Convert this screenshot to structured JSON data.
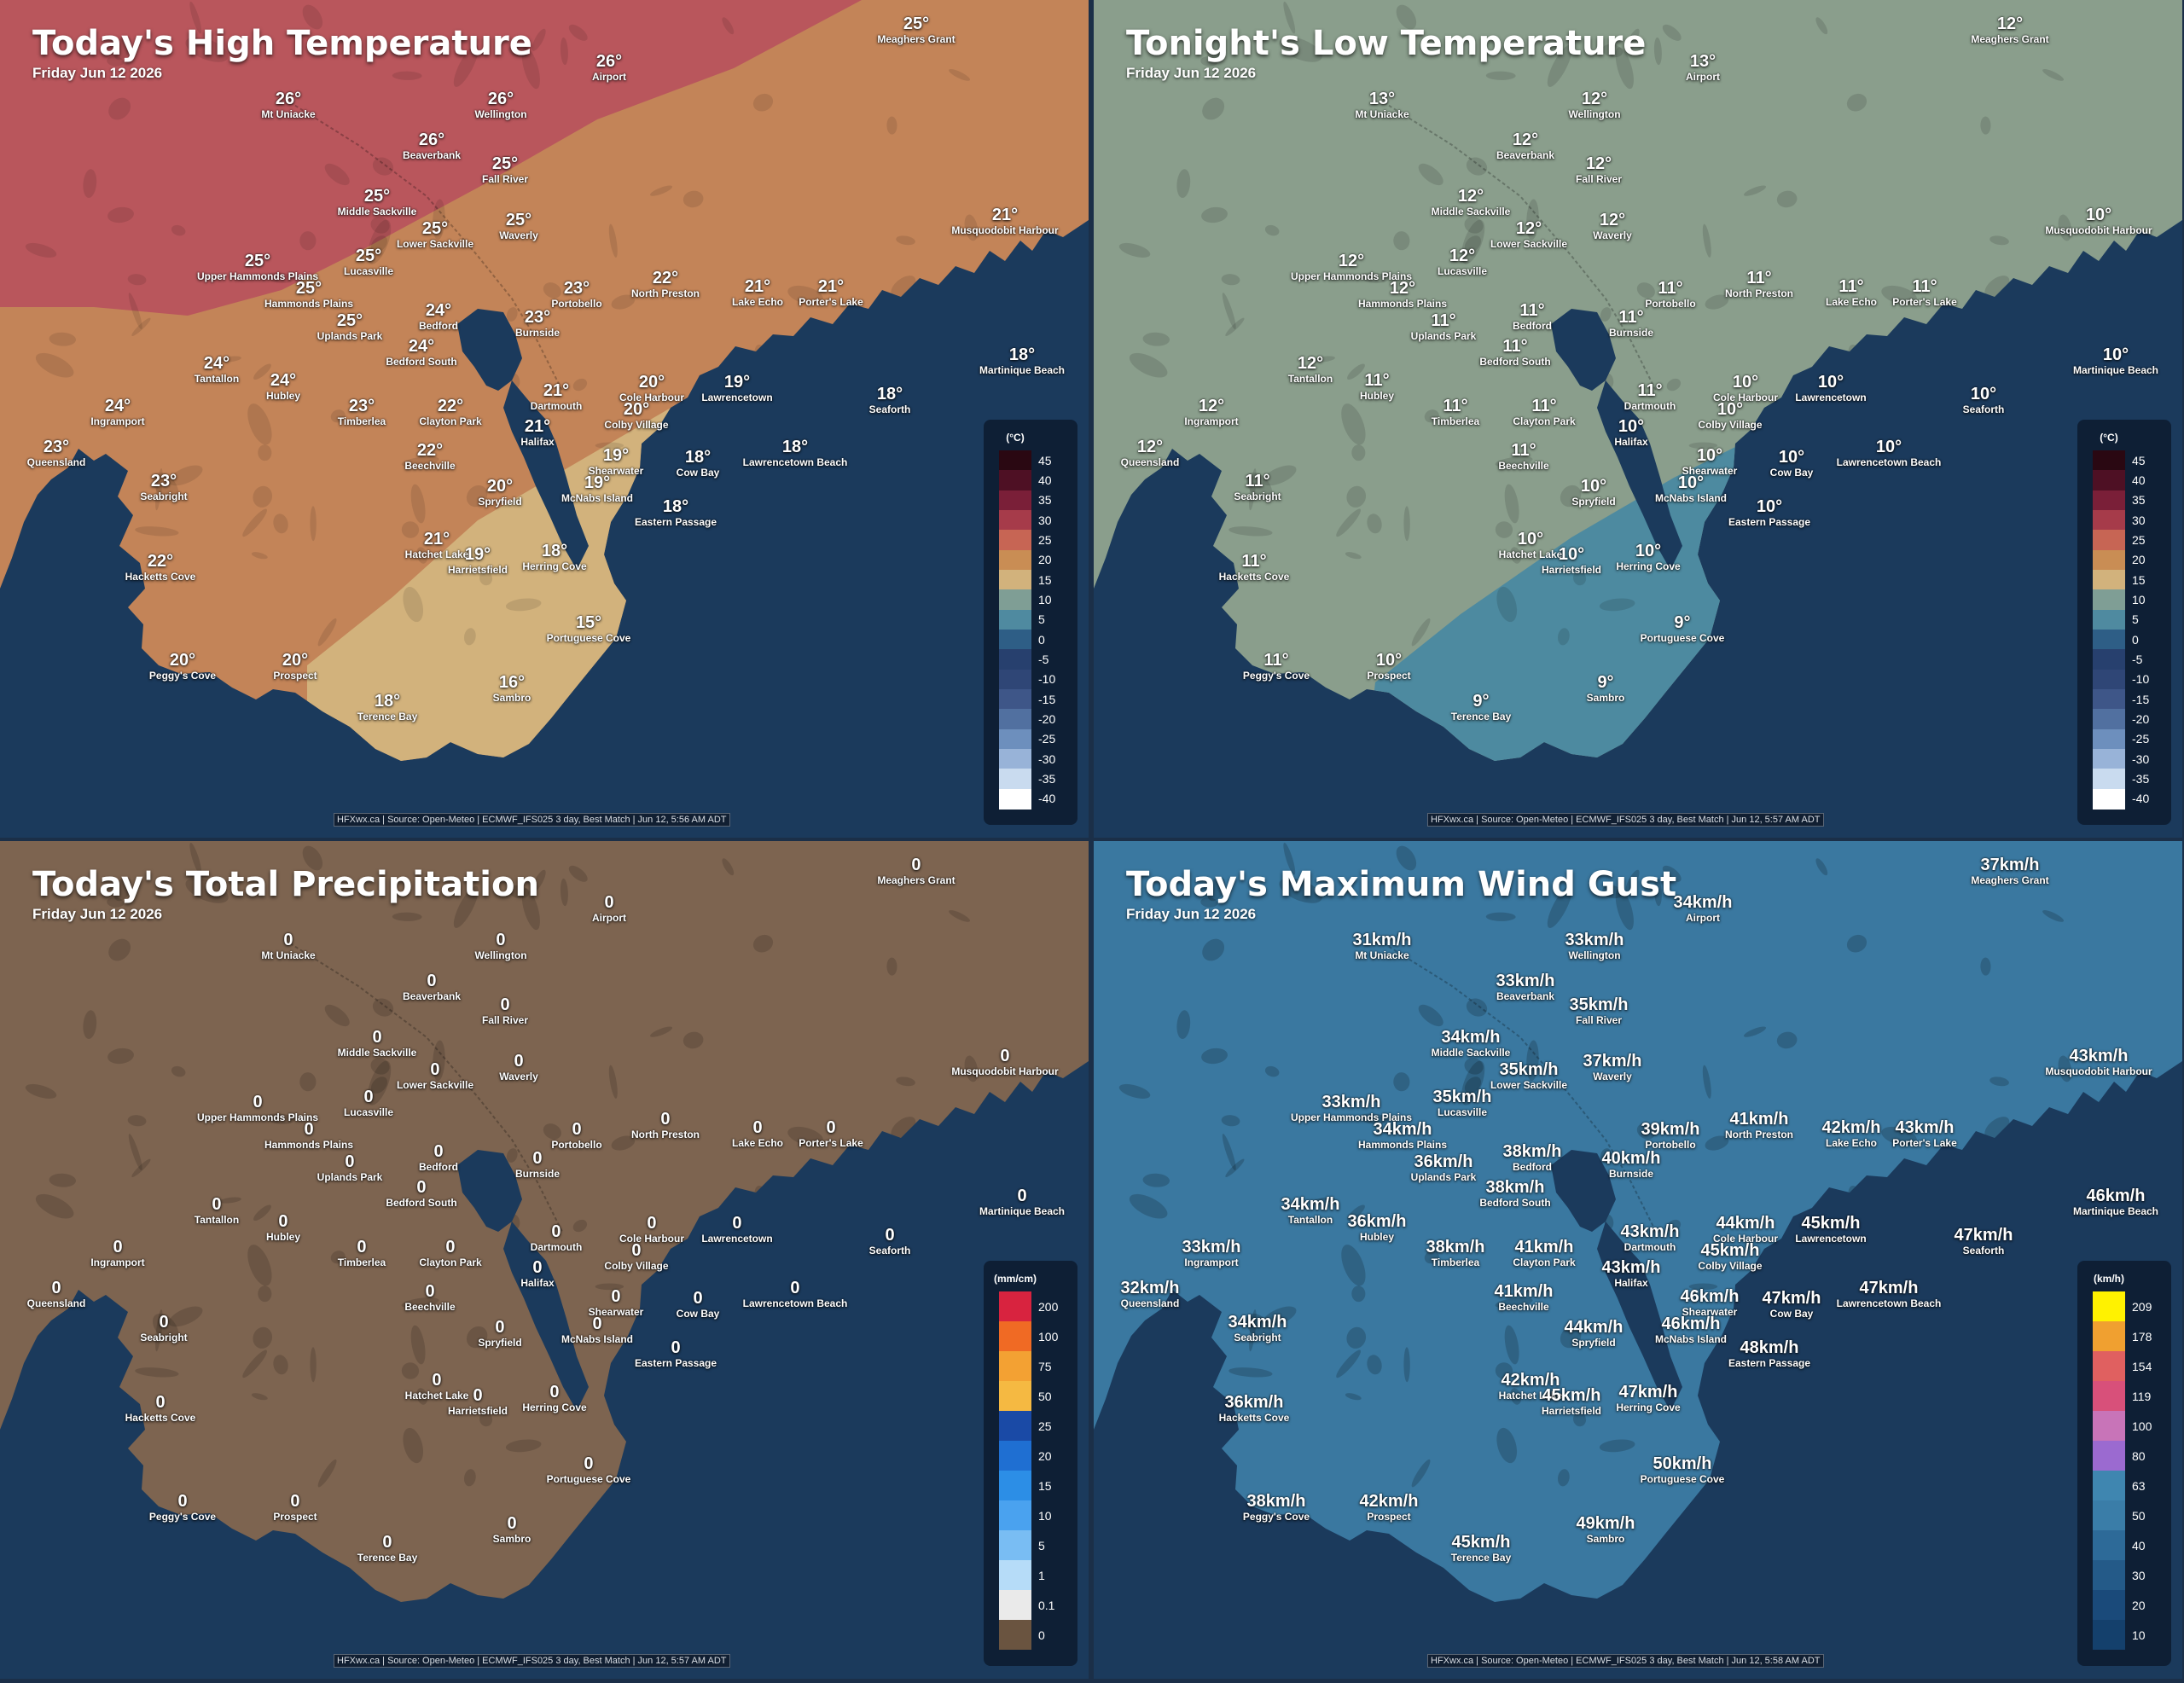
{
  "panels": [
    {
      "title": "Today's High Temperature",
      "date": "Friday Jun 12 2026",
      "credit": "HFXwx.ca | Source: Open-Meteo | ECMWF_IFS025 3 day, Best Match | Jun 12, 5:56 AM ADT",
      "legend": {
        "unit": "(°C)",
        "ticks": [
          "45",
          "40",
          "35",
          "30",
          "25",
          "20",
          "15",
          "10",
          "5",
          "0",
          "-5",
          "-10",
          "-15",
          "-20",
          "-25",
          "-30",
          "-35",
          "-40"
        ],
        "colors": [
          "#2a0812",
          "#4e1024",
          "#7a1f38",
          "#a63b4a",
          "#c76554",
          "#c98d54",
          "#d2b27c",
          "#7f9e95",
          "#4f8aa0",
          "#2e5e86",
          "#27406e",
          "#2f4676",
          "#3e5688",
          "#5170a0",
          "#6d8fbd",
          "#98b3d8",
          "#c9dbef",
          "#ffffff"
        ]
      },
      "stations": [
        {
          "name": "Meaghers Grant",
          "value": "25°"
        },
        {
          "name": "Airport",
          "value": "26°"
        },
        {
          "name": "Mt Uniacke",
          "value": "26°"
        },
        {
          "name": "Wellington",
          "value": "26°"
        },
        {
          "name": "Beaverbank",
          "value": "26°"
        },
        {
          "name": "Fall River",
          "value": "25°"
        },
        {
          "name": "Middle Sackville",
          "value": "25°"
        },
        {
          "name": "Waverly",
          "value": "25°"
        },
        {
          "name": "Lower Sackville",
          "value": "25°"
        },
        {
          "name": "Musquodobit Harbour",
          "value": "21°"
        },
        {
          "name": "Upper Hammonds Plains",
          "value": "25°"
        },
        {
          "name": "Lucasville",
          "value": "25°"
        },
        {
          "name": "Hammonds Plains",
          "value": "25°"
        },
        {
          "name": "Portobello",
          "value": "23°"
        },
        {
          "name": "North Preston",
          "value": "22°"
        },
        {
          "name": "Lake Echo",
          "value": "21°"
        },
        {
          "name": "Porter's Lake",
          "value": "21°"
        },
        {
          "name": "Bedford",
          "value": "24°"
        },
        {
          "name": "Uplands Park",
          "value": "25°"
        },
        {
          "name": "Burnside",
          "value": "23°"
        },
        {
          "name": "Bedford South",
          "value": "24°"
        },
        {
          "name": "Martinique Beach",
          "value": "18°"
        },
        {
          "name": "Tantallon",
          "value": "24°"
        },
        {
          "name": "Hubley",
          "value": "24°"
        },
        {
          "name": "Dartmouth",
          "value": "21°"
        },
        {
          "name": "Cole Harbour",
          "value": "20°"
        },
        {
          "name": "Lawrencetown",
          "value": "19°"
        },
        {
          "name": "Seaforth",
          "value": "18°"
        },
        {
          "name": "Ingramport",
          "value": "24°"
        },
        {
          "name": "Timberlea",
          "value": "23°"
        },
        {
          "name": "Clayton Park",
          "value": "22°"
        },
        {
          "name": "Colby Village",
          "value": "20°"
        },
        {
          "name": "Queensland",
          "value": "23°"
        },
        {
          "name": "Halifax",
          "value": "21°"
        },
        {
          "name": "Lawrencetown Beach",
          "value": "18°"
        },
        {
          "name": "Beechville",
          "value": "22°"
        },
        {
          "name": "Shearwater",
          "value": "19°"
        },
        {
          "name": "Cow Bay",
          "value": "18°"
        },
        {
          "name": "Seabright",
          "value": "23°"
        },
        {
          "name": "Spryfield",
          "value": "20°"
        },
        {
          "name": "McNabs Island",
          "value": "19°"
        },
        {
          "name": "Eastern Passage",
          "value": "18°"
        },
        {
          "name": "Hatchet Lake",
          "value": "21°"
        },
        {
          "name": "Harrietsfield",
          "value": "19°"
        },
        {
          "name": "Herring Cove",
          "value": "18°"
        },
        {
          "name": "Hacketts Cove",
          "value": "22°"
        },
        {
          "name": "Portuguese Cove",
          "value": "15°"
        },
        {
          "name": "Peggy's Cove",
          "value": "20°"
        },
        {
          "name": "Prospect",
          "value": "20°"
        },
        {
          "name": "Sambro",
          "value": "16°"
        },
        {
          "name": "Terence Bay",
          "value": "18°"
        }
      ]
    },
    {
      "title": "Tonight's Low Temperature",
      "date": "Friday Jun 12 2026",
      "credit": "HFXwx.ca | Source: Open-Meteo | ECMWF_IFS025 3 day, Best Match | Jun 12, 5:57 AM ADT",
      "legend": {
        "unit": "(°C)",
        "ticks": [
          "45",
          "40",
          "35",
          "30",
          "25",
          "20",
          "15",
          "10",
          "5",
          "0",
          "-5",
          "-10",
          "-15",
          "-20",
          "-25",
          "-30",
          "-35",
          "-40"
        ],
        "colors": [
          "#2a0812",
          "#4e1024",
          "#7a1f38",
          "#a63b4a",
          "#c76554",
          "#c98d54",
          "#d2b27c",
          "#7f9e95",
          "#4f8aa0",
          "#2e5e86",
          "#27406e",
          "#2f4676",
          "#3e5688",
          "#5170a0",
          "#6d8fbd",
          "#98b3d8",
          "#c9dbef",
          "#ffffff"
        ]
      },
      "stations": [
        {
          "name": "Meaghers Grant",
          "value": "12°"
        },
        {
          "name": "Airport",
          "value": "13°"
        },
        {
          "name": "Mt Uniacke",
          "value": "13°"
        },
        {
          "name": "Wellington",
          "value": "12°"
        },
        {
          "name": "Beaverbank",
          "value": "12°"
        },
        {
          "name": "Fall River",
          "value": "12°"
        },
        {
          "name": "Middle Sackville",
          "value": "12°"
        },
        {
          "name": "Waverly",
          "value": "12°"
        },
        {
          "name": "Lower Sackville",
          "value": "12°"
        },
        {
          "name": "Musquodobit Harbour",
          "value": "10°"
        },
        {
          "name": "Upper Hammonds Plains",
          "value": "12°"
        },
        {
          "name": "Lucasville",
          "value": "12°"
        },
        {
          "name": "Hammonds Plains",
          "value": "12°"
        },
        {
          "name": "Portobello",
          "value": "11°"
        },
        {
          "name": "North Preston",
          "value": "11°"
        },
        {
          "name": "Lake Echo",
          "value": "11°"
        },
        {
          "name": "Porter's Lake",
          "value": "11°"
        },
        {
          "name": "Bedford",
          "value": "11°"
        },
        {
          "name": "Uplands Park",
          "value": "11°"
        },
        {
          "name": "Burnside",
          "value": "11°"
        },
        {
          "name": "Bedford South",
          "value": "11°"
        },
        {
          "name": "Martinique Beach",
          "value": "10°"
        },
        {
          "name": "Tantallon",
          "value": "12°"
        },
        {
          "name": "Hubley",
          "value": "11°"
        },
        {
          "name": "Dartmouth",
          "value": "11°"
        },
        {
          "name": "Cole Harbour",
          "value": "10°"
        },
        {
          "name": "Lawrencetown",
          "value": "10°"
        },
        {
          "name": "Seaforth",
          "value": "10°"
        },
        {
          "name": "Ingramport",
          "value": "12°"
        },
        {
          "name": "Timberlea",
          "value": "11°"
        },
        {
          "name": "Clayton Park",
          "value": "11°"
        },
        {
          "name": "Colby Village",
          "value": "10°"
        },
        {
          "name": "Queensland",
          "value": "12°"
        },
        {
          "name": "Halifax",
          "value": "10°"
        },
        {
          "name": "Lawrencetown Beach",
          "value": "10°"
        },
        {
          "name": "Beechville",
          "value": "11°"
        },
        {
          "name": "Shearwater",
          "value": "10°"
        },
        {
          "name": "Cow Bay",
          "value": "10°"
        },
        {
          "name": "Seabright",
          "value": "11°"
        },
        {
          "name": "Spryfield",
          "value": "10°"
        },
        {
          "name": "McNabs Island",
          "value": "10°"
        },
        {
          "name": "Eastern Passage",
          "value": "10°"
        },
        {
          "name": "Hatchet Lake",
          "value": "10°"
        },
        {
          "name": "Harrietsfield",
          "value": "10°"
        },
        {
          "name": "Herring Cove",
          "value": "10°"
        },
        {
          "name": "Hacketts Cove",
          "value": "11°"
        },
        {
          "name": "Portuguese Cove",
          "value": "9°"
        },
        {
          "name": "Peggy's Cove",
          "value": "11°"
        },
        {
          "name": "Prospect",
          "value": "10°"
        },
        {
          "name": "Sambro",
          "value": "9°"
        },
        {
          "name": "Terence Bay",
          "value": "9°"
        }
      ]
    },
    {
      "title": "Today's Total Precipitation",
      "date": "Friday Jun 12 2026",
      "credit": "HFXwx.ca | Source: Open-Meteo | ECMWF_IFS025 3 day, Best Match | Jun 12, 5:57 AM ADT",
      "legend": {
        "unit": "(mm/cm)",
        "ticks": [
          "200",
          "100",
          "75",
          "50",
          "25",
          "20",
          "15",
          "10",
          "5",
          "1",
          "0.1",
          "0"
        ],
        "colors": [
          "#d8233f",
          "#f06a24",
          "#f3a133",
          "#f5b942",
          "#1a4aa6",
          "#1f6fd2",
          "#2c8ee6",
          "#4aa2ef",
          "#79bdf3",
          "#b6dcf8",
          "#eaeaea",
          "#6a5440"
        ]
      },
      "stations": [
        {
          "name": "Meaghers Grant",
          "value": "0"
        },
        {
          "name": "Airport",
          "value": "0"
        },
        {
          "name": "Mt Uniacke",
          "value": "0"
        },
        {
          "name": "Wellington",
          "value": "0"
        },
        {
          "name": "Beaverbank",
          "value": "0"
        },
        {
          "name": "Fall River",
          "value": "0"
        },
        {
          "name": "Middle Sackville",
          "value": "0"
        },
        {
          "name": "Waverly",
          "value": "0"
        },
        {
          "name": "Lower Sackville",
          "value": "0"
        },
        {
          "name": "Musquodobit Harbour",
          "value": "0"
        },
        {
          "name": "Upper Hammonds Plains",
          "value": "0"
        },
        {
          "name": "Lucasville",
          "value": "0"
        },
        {
          "name": "Hammonds Plains",
          "value": "0"
        },
        {
          "name": "Portobello",
          "value": "0"
        },
        {
          "name": "North Preston",
          "value": "0"
        },
        {
          "name": "Lake Echo",
          "value": "0"
        },
        {
          "name": "Porter's Lake",
          "value": "0"
        },
        {
          "name": "Bedford",
          "value": "0"
        },
        {
          "name": "Uplands Park",
          "value": "0"
        },
        {
          "name": "Burnside",
          "value": "0"
        },
        {
          "name": "Bedford South",
          "value": "0"
        },
        {
          "name": "Martinique Beach",
          "value": "0"
        },
        {
          "name": "Tantallon",
          "value": "0"
        },
        {
          "name": "Hubley",
          "value": "0"
        },
        {
          "name": "Dartmouth",
          "value": "0"
        },
        {
          "name": "Cole Harbour",
          "value": "0"
        },
        {
          "name": "Lawrencetown",
          "value": "0"
        },
        {
          "name": "Seaforth",
          "value": "0"
        },
        {
          "name": "Ingramport",
          "value": "0"
        },
        {
          "name": "Timberlea",
          "value": "0"
        },
        {
          "name": "Clayton Park",
          "value": "0"
        },
        {
          "name": "Colby Village",
          "value": "0"
        },
        {
          "name": "Queensland",
          "value": "0"
        },
        {
          "name": "Halifax",
          "value": "0"
        },
        {
          "name": "Lawrencetown Beach",
          "value": "0"
        },
        {
          "name": "Beechville",
          "value": "0"
        },
        {
          "name": "Shearwater",
          "value": "0"
        },
        {
          "name": "Cow Bay",
          "value": "0"
        },
        {
          "name": "Seabright",
          "value": "0"
        },
        {
          "name": "Spryfield",
          "value": "0"
        },
        {
          "name": "McNabs Island",
          "value": "0"
        },
        {
          "name": "Eastern Passage",
          "value": "0"
        },
        {
          "name": "Hatchet Lake",
          "value": "0"
        },
        {
          "name": "Harrietsfield",
          "value": "0"
        },
        {
          "name": "Herring Cove",
          "value": "0"
        },
        {
          "name": "Hacketts Cove",
          "value": "0"
        },
        {
          "name": "Portuguese Cove",
          "value": "0"
        },
        {
          "name": "Peggy's Cove",
          "value": "0"
        },
        {
          "name": "Prospect",
          "value": "0"
        },
        {
          "name": "Sambro",
          "value": "0"
        },
        {
          "name": "Terence Bay",
          "value": "0"
        }
      ]
    },
    {
      "title": "Today's Maximum Wind Gust",
      "date": "Friday Jun 12 2026",
      "credit": "HFXwx.ca | Source: Open-Meteo | ECMWF_IFS025 3 day, Best Match | Jun 12, 5:58 AM ADT",
      "legend": {
        "unit": "(km/h)",
        "ticks": [
          "209",
          "178",
          "154",
          "119",
          "100",
          "80",
          "63",
          "50",
          "40",
          "30",
          "20",
          "10"
        ],
        "colors": [
          "#fff200",
          "#f0a030",
          "#e06060",
          "#d8507a",
          "#c874b8",
          "#9b6ad0",
          "#3f86b0",
          "#3a7da8",
          "#2d6a98",
          "#245a88",
          "#1a4a7a",
          "#14406c"
        ]
      },
      "stations": [
        {
          "name": "Meaghers Grant",
          "value": "37km/h"
        },
        {
          "name": "Airport",
          "value": "34km/h"
        },
        {
          "name": "Mt Uniacke",
          "value": "31km/h"
        },
        {
          "name": "Wellington",
          "value": "33km/h"
        },
        {
          "name": "Beaverbank",
          "value": "33km/h"
        },
        {
          "name": "Fall River",
          "value": "35km/h"
        },
        {
          "name": "Middle Sackville",
          "value": "34km/h"
        },
        {
          "name": "Waverly",
          "value": "37km/h"
        },
        {
          "name": "Lower Sackville",
          "value": "35km/h"
        },
        {
          "name": "Musquodobit Harbour",
          "value": "43km/h"
        },
        {
          "name": "Upper Hammonds Plains",
          "value": "33km/h"
        },
        {
          "name": "Lucasville",
          "value": "35km/h"
        },
        {
          "name": "Hammonds Plains",
          "value": "34km/h"
        },
        {
          "name": "Portobello",
          "value": "39km/h"
        },
        {
          "name": "North Preston",
          "value": "41km/h"
        },
        {
          "name": "Lake Echo",
          "value": "42km/h"
        },
        {
          "name": "Porter's Lake",
          "value": "43km/h"
        },
        {
          "name": "Bedford",
          "value": "38km/h"
        },
        {
          "name": "Uplands Park",
          "value": "36km/h"
        },
        {
          "name": "Burnside",
          "value": "40km/h"
        },
        {
          "name": "Bedford South",
          "value": "38km/h"
        },
        {
          "name": "Martinique Beach",
          "value": "46km/h"
        },
        {
          "name": "Tantallon",
          "value": "34km/h"
        },
        {
          "name": "Hubley",
          "value": "36km/h"
        },
        {
          "name": "Dartmouth",
          "value": "43km/h"
        },
        {
          "name": "Cole Harbour",
          "value": "44km/h"
        },
        {
          "name": "Lawrencetown",
          "value": "45km/h"
        },
        {
          "name": "Seaforth",
          "value": "47km/h"
        },
        {
          "name": "Ingramport",
          "value": "33km/h"
        },
        {
          "name": "Timberlea",
          "value": "38km/h"
        },
        {
          "name": "Clayton Park",
          "value": "41km/h"
        },
        {
          "name": "Colby Village",
          "value": "45km/h"
        },
        {
          "name": "Queensland",
          "value": "32km/h"
        },
        {
          "name": "Halifax",
          "value": "43km/h"
        },
        {
          "name": "Lawrencetown Beach",
          "value": "47km/h"
        },
        {
          "name": "Beechville",
          "value": "41km/h"
        },
        {
          "name": "Shearwater",
          "value": "46km/h"
        },
        {
          "name": "Cow Bay",
          "value": "47km/h"
        },
        {
          "name": "Seabright",
          "value": "34km/h"
        },
        {
          "name": "Spryfield",
          "value": "44km/h"
        },
        {
          "name": "McNabs Island",
          "value": "46km/h"
        },
        {
          "name": "Eastern Passage",
          "value": "48km/h"
        },
        {
          "name": "Hatchet Lake",
          "value": "42km/h"
        },
        {
          "name": "Harrietsfield",
          "value": "45km/h"
        },
        {
          "name": "Herring Cove",
          "value": "47km/h"
        },
        {
          "name": "Hacketts Cove",
          "value": "36km/h"
        },
        {
          "name": "Portuguese Cove",
          "value": "50km/h"
        },
        {
          "name": "Peggy's Cove",
          "value": "38km/h"
        },
        {
          "name": "Prospect",
          "value": "42km/h"
        },
        {
          "name": "Sambro",
          "value": "49km/h"
        },
        {
          "name": "Terence Bay",
          "value": "45km/h"
        }
      ]
    }
  ]
}
